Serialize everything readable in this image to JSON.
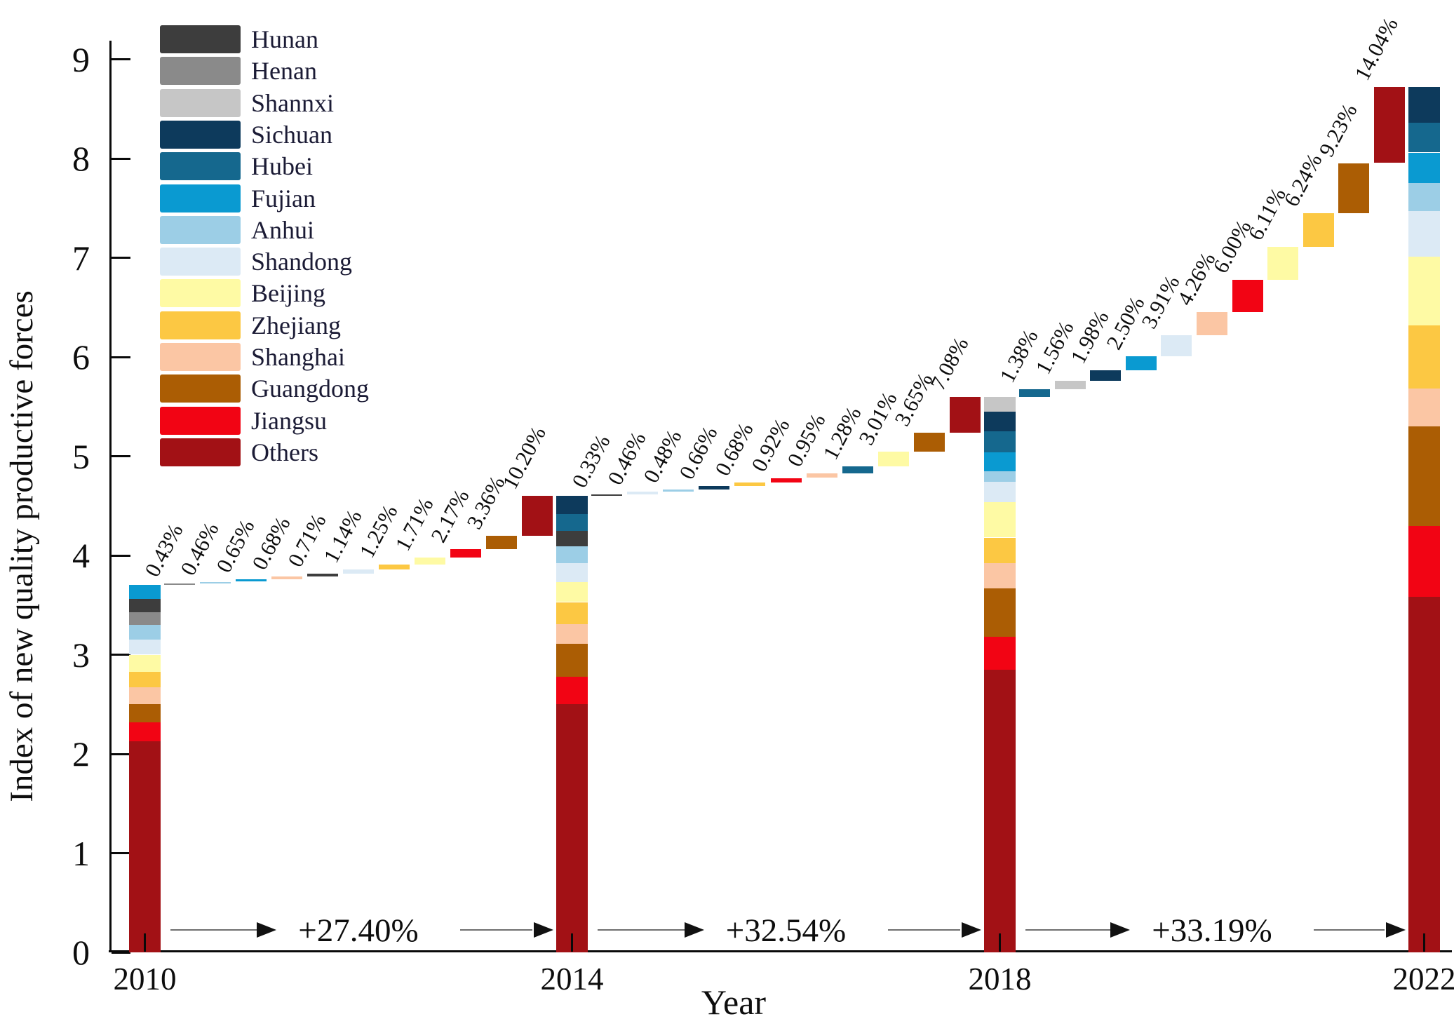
{
  "axes": {
    "y_title": "Index of new quality productive forces",
    "x_title": "Year",
    "y_ticks": [
      "0",
      "1",
      "2",
      "3",
      "4",
      "5",
      "6",
      "7",
      "8",
      "9"
    ],
    "x_ticks": [
      "2010",
      "2014",
      "2018",
      "2022"
    ]
  },
  "legend": {
    "items": [
      "Hunan",
      "Henan",
      "Shannxi",
      "Sichuan",
      "Hubei",
      "Fujian",
      "Anhui",
      "Shandong",
      "Beijing",
      "Zhejiang",
      "Shanghai",
      "Guangdong",
      "Jiangsu",
      "Others"
    ]
  },
  "chart_data": {
    "type": "bar",
    "subtype": "stacked-bar-waterfall",
    "xlabel": "Year",
    "ylabel": "Index of new quality productive forces",
    "ylim": [
      0,
      9
    ],
    "grid": false,
    "legend_position": "upper-left",
    "categories": [
      "2010",
      "2014",
      "2018",
      "2022"
    ],
    "totals": [
      3.7,
      4.6,
      5.6,
      8.72
    ],
    "palette": {
      "Hunan": "#3d3d3d",
      "Henan": "#8a8a8a",
      "Shannxi": "#c6c6c6",
      "Sichuan": "#0d3a5c",
      "Hubei": "#15688e",
      "Fujian": "#0a9ad1",
      "Anhui": "#9ccee6",
      "Shandong": "#dceaf5",
      "Beijing": "#fefaa4",
      "Zhejiang": "#fcc843",
      "Shanghai": "#fbc6a4",
      "Guangdong": "#ab5d04",
      "Jiangsu": "#f20414",
      "Others": "#a21115"
    },
    "bars": [
      {
        "year": "2010",
        "total": 3.7,
        "segments_top_to_bottom": [
          {
            "province": "Fujian",
            "value": 0.14
          },
          {
            "province": "Hunan",
            "value": 0.13
          },
          {
            "province": "Henan",
            "value": 0.13
          },
          {
            "province": "Anhui",
            "value": 0.15
          },
          {
            "province": "Shandong",
            "value": 0.15
          },
          {
            "province": "Beijing",
            "value": 0.17
          },
          {
            "province": "Zhejiang",
            "value": 0.16
          },
          {
            "province": "Shanghai",
            "value": 0.17
          },
          {
            "province": "Guangdong",
            "value": 0.18
          },
          {
            "province": "Jiangsu",
            "value": 0.19
          },
          {
            "province": "Others",
            "value": 2.13
          }
        ]
      },
      {
        "year": "2014",
        "total": 4.6,
        "segments_top_to_bottom": [
          {
            "province": "Sichuan",
            "value": 0.18
          },
          {
            "province": "Hubei",
            "value": 0.17
          },
          {
            "province": "Hunan",
            "value": 0.16
          },
          {
            "province": "Anhui",
            "value": 0.17
          },
          {
            "province": "Shandong",
            "value": 0.19
          },
          {
            "province": "Beijing",
            "value": 0.2
          },
          {
            "province": "Zhejiang",
            "value": 0.22
          },
          {
            "province": "Shanghai",
            "value": 0.2
          },
          {
            "province": "Guangdong",
            "value": 0.33
          },
          {
            "province": "Jiangsu",
            "value": 0.28
          },
          {
            "province": "Others",
            "value": 2.5
          }
        ]
      },
      {
        "year": "2018",
        "total": 5.6,
        "segments_top_to_bottom": [
          {
            "province": "Shannxi",
            "value": 0.15
          },
          {
            "province": "Sichuan",
            "value": 0.2
          },
          {
            "province": "Hubei",
            "value": 0.21
          },
          {
            "province": "Fujian",
            "value": 0.19
          },
          {
            "province": "Anhui",
            "value": 0.11
          },
          {
            "province": "Shandong",
            "value": 0.2
          },
          {
            "province": "Beijing",
            "value": 0.36
          },
          {
            "province": "Zhejiang",
            "value": 0.26
          },
          {
            "province": "Shanghai",
            "value": 0.25
          },
          {
            "province": "Guangdong",
            "value": 0.49
          },
          {
            "province": "Jiangsu",
            "value": 0.33
          },
          {
            "province": "Others",
            "value": 2.85
          }
        ]
      },
      {
        "year": "2022",
        "total": 8.72,
        "segments_top_to_bottom": [
          {
            "province": "Sichuan",
            "value": 0.36
          },
          {
            "province": "Hubei",
            "value": 0.3
          },
          {
            "province": "Fujian",
            "value": 0.31
          },
          {
            "province": "Anhui",
            "value": 0.28
          },
          {
            "province": "Shandong",
            "value": 0.46
          },
          {
            "province": "Beijing",
            "value": 0.69
          },
          {
            "province": "Zhejiang",
            "value": 0.64
          },
          {
            "province": "Shanghai",
            "value": 0.38
          },
          {
            "province": "Guangdong",
            "value": 1.0
          },
          {
            "province": "Jiangsu",
            "value": 0.72
          },
          {
            "province": "Others",
            "value": 3.58
          }
        ]
      }
    ],
    "transitions": [
      {
        "from": "2010",
        "to": "2014",
        "growth_label": "+27.40%",
        "steps": [
          {
            "province": "Henan",
            "label": "0.43%"
          },
          {
            "province": "Anhui",
            "label": "0.46%"
          },
          {
            "province": "Fujian",
            "label": "0.65%"
          },
          {
            "province": "Shanghai",
            "label": "0.68%"
          },
          {
            "province": "Hunan",
            "label": "0.71%"
          },
          {
            "province": "Shandong",
            "label": "1.14%"
          },
          {
            "province": "Zhejiang",
            "label": "1.25%"
          },
          {
            "province": "Beijing",
            "label": "1.71%"
          },
          {
            "province": "Jiangsu",
            "label": "2.17%"
          },
          {
            "province": "Guangdong",
            "label": "3.36%"
          },
          {
            "province": "Others",
            "label": "10.20%"
          }
        ]
      },
      {
        "from": "2014",
        "to": "2018",
        "growth_label": "+32.54%",
        "steps": [
          {
            "province": "Hunan",
            "label": "0.33%"
          },
          {
            "province": "Shandong",
            "label": "0.46%"
          },
          {
            "province": "Anhui",
            "label": "0.48%"
          },
          {
            "province": "Sichuan",
            "label": "0.66%"
          },
          {
            "province": "Zhejiang",
            "label": "0.68%"
          },
          {
            "province": "Jiangsu",
            "label": "0.92%"
          },
          {
            "province": "Shanghai",
            "label": "0.95%"
          },
          {
            "province": "Hubei",
            "label": "1.28%"
          },
          {
            "province": "Beijing",
            "label": "3.01%"
          },
          {
            "province": "Guangdong",
            "label": "3.65%"
          },
          {
            "province": "Others",
            "label": "7.08%"
          }
        ]
      },
      {
        "from": "2018",
        "to": "2022",
        "growth_label": "+33.19%",
        "steps": [
          {
            "province": "Hubei",
            "label": "1.38%"
          },
          {
            "province": "Shannxi",
            "label": "1.56%"
          },
          {
            "province": "Sichuan",
            "label": "1.98%"
          },
          {
            "province": "Fujian",
            "label": "2.50%"
          },
          {
            "province": "Shandong",
            "label": "3.91%"
          },
          {
            "province": "Shanghai",
            "label": "4.26%"
          },
          {
            "province": "Jiangsu",
            "label": "6.00%"
          },
          {
            "province": "Beijing",
            "label": "6.11%"
          },
          {
            "province": "Zhejiang",
            "label": "6.24%"
          },
          {
            "province": "Guangdong",
            "label": "9.23%"
          },
          {
            "province": "Others",
            "label": "14.04%"
          }
        ]
      }
    ]
  }
}
